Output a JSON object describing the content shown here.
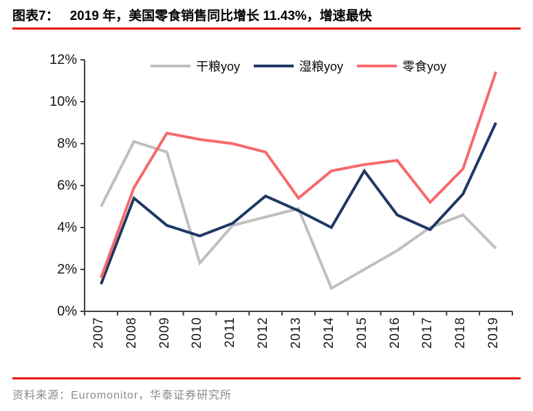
{
  "header": {
    "label": "图表7：",
    "title": "2019 年，美国零食销售同比增长 11.43%，增速最快"
  },
  "footer": {
    "source": "资料来源：Euromonitor，华泰证券研究所"
  },
  "colors": {
    "rule_red": "#e8130c",
    "axis": "#3f3f3f",
    "source_gray": "#8a8a8a"
  },
  "chart_data": {
    "type": "line",
    "title": "2019 年，美国零食销售同比增长 11.43%，增速最快",
    "x": [
      "2007",
      "2008",
      "2009",
      "2010",
      "2011",
      "2012",
      "2013",
      "2014",
      "2015",
      "2016",
      "2017",
      "2018",
      "2019"
    ],
    "series": [
      {
        "name": "干粮yoy",
        "color": "#bfbfbf",
        "values": [
          5.0,
          8.1,
          7.6,
          2.3,
          4.1,
          4.5,
          4.9,
          1.1,
          2.0,
          2.9,
          4.0,
          4.6,
          3.0
        ]
      },
      {
        "name": "湿粮yoy",
        "color": "#1f3864",
        "values": [
          1.3,
          5.4,
          4.1,
          3.6,
          4.2,
          5.5,
          4.8,
          4.0,
          6.7,
          4.6,
          3.9,
          5.6,
          9.0
        ]
      },
      {
        "name": "零食yoy",
        "color": "#f7696c",
        "values": [
          1.6,
          5.9,
          8.5,
          8.2,
          8.0,
          7.6,
          5.4,
          6.7,
          7.0,
          7.2,
          5.2,
          6.8,
          11.43
        ]
      }
    ],
    "ylim": [
      0,
      12
    ],
    "ytick_step": 2,
    "ytick_labels": [
      "0%",
      "2%",
      "4%",
      "6%",
      "8%",
      "10%",
      "12%"
    ],
    "xlabel": "",
    "ylabel": "",
    "grid": false,
    "legend_position": "top-center"
  }
}
